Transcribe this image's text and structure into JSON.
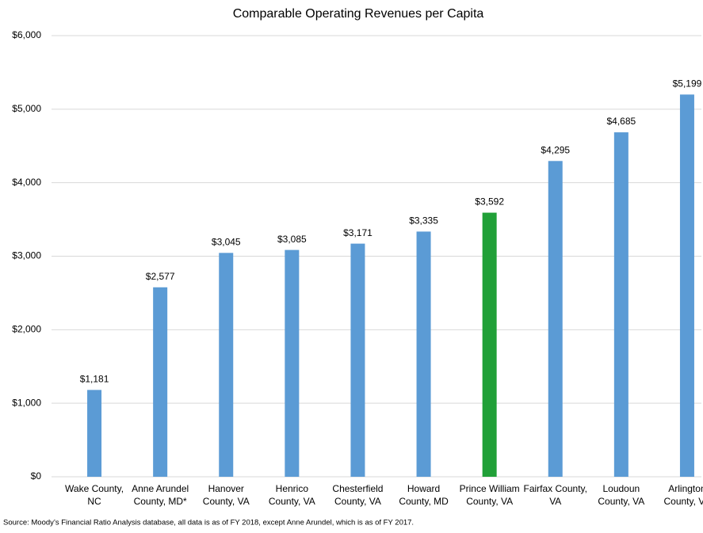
{
  "chart_data": {
    "type": "bar",
    "title": "Comparable Operating Revenues per Capita",
    "categories": [
      [
        "Wake County,",
        "NC"
      ],
      [
        "Anne Arundel",
        "County, MD*"
      ],
      [
        "Hanover",
        "County, VA"
      ],
      [
        "Henrico",
        "County, VA"
      ],
      [
        "Chesterfield",
        "County, VA"
      ],
      [
        "Howard",
        "County, MD"
      ],
      [
        "Prince William",
        "County, VA"
      ],
      [
        "Fairfax County,",
        "VA"
      ],
      [
        "Loudoun",
        "County, VA"
      ],
      [
        "Arlington",
        "County, VA"
      ]
    ],
    "values": [
      1181,
      2577,
      3045,
      3085,
      3171,
      3335,
      3592,
      4295,
      4685,
      5199
    ],
    "value_labels": [
      "$1,181",
      "$2,577",
      "$3,045",
      "$3,085",
      "$3,171",
      "$3,335",
      "$3,592",
      "$4,295",
      "$4,685",
      "$5,199"
    ],
    "colors": [
      "#5b9bd5",
      "#5b9bd5",
      "#5b9bd5",
      "#5b9bd5",
      "#5b9bd5",
      "#5b9bd5",
      "#21a038",
      "#5b9bd5",
      "#5b9bd5",
      "#5b9bd5"
    ],
    "ylim": [
      0,
      6000
    ],
    "yticks": [
      {
        "value": 0,
        "label": "$0"
      },
      {
        "value": 1000,
        "label": "$1,000"
      },
      {
        "value": 2000,
        "label": "$2,000"
      },
      {
        "value": 3000,
        "label": "$3,000"
      },
      {
        "value": 4000,
        "label": "$4,000"
      },
      {
        "value": 5000,
        "label": "$5,000"
      },
      {
        "value": 6000,
        "label": "$6,000"
      }
    ],
    "grid": true,
    "source": "Source: Moody’s Financial Ratio Analysis database, all data is as of FY 2018, except Anne Arundel, which is as of FY 2017."
  }
}
